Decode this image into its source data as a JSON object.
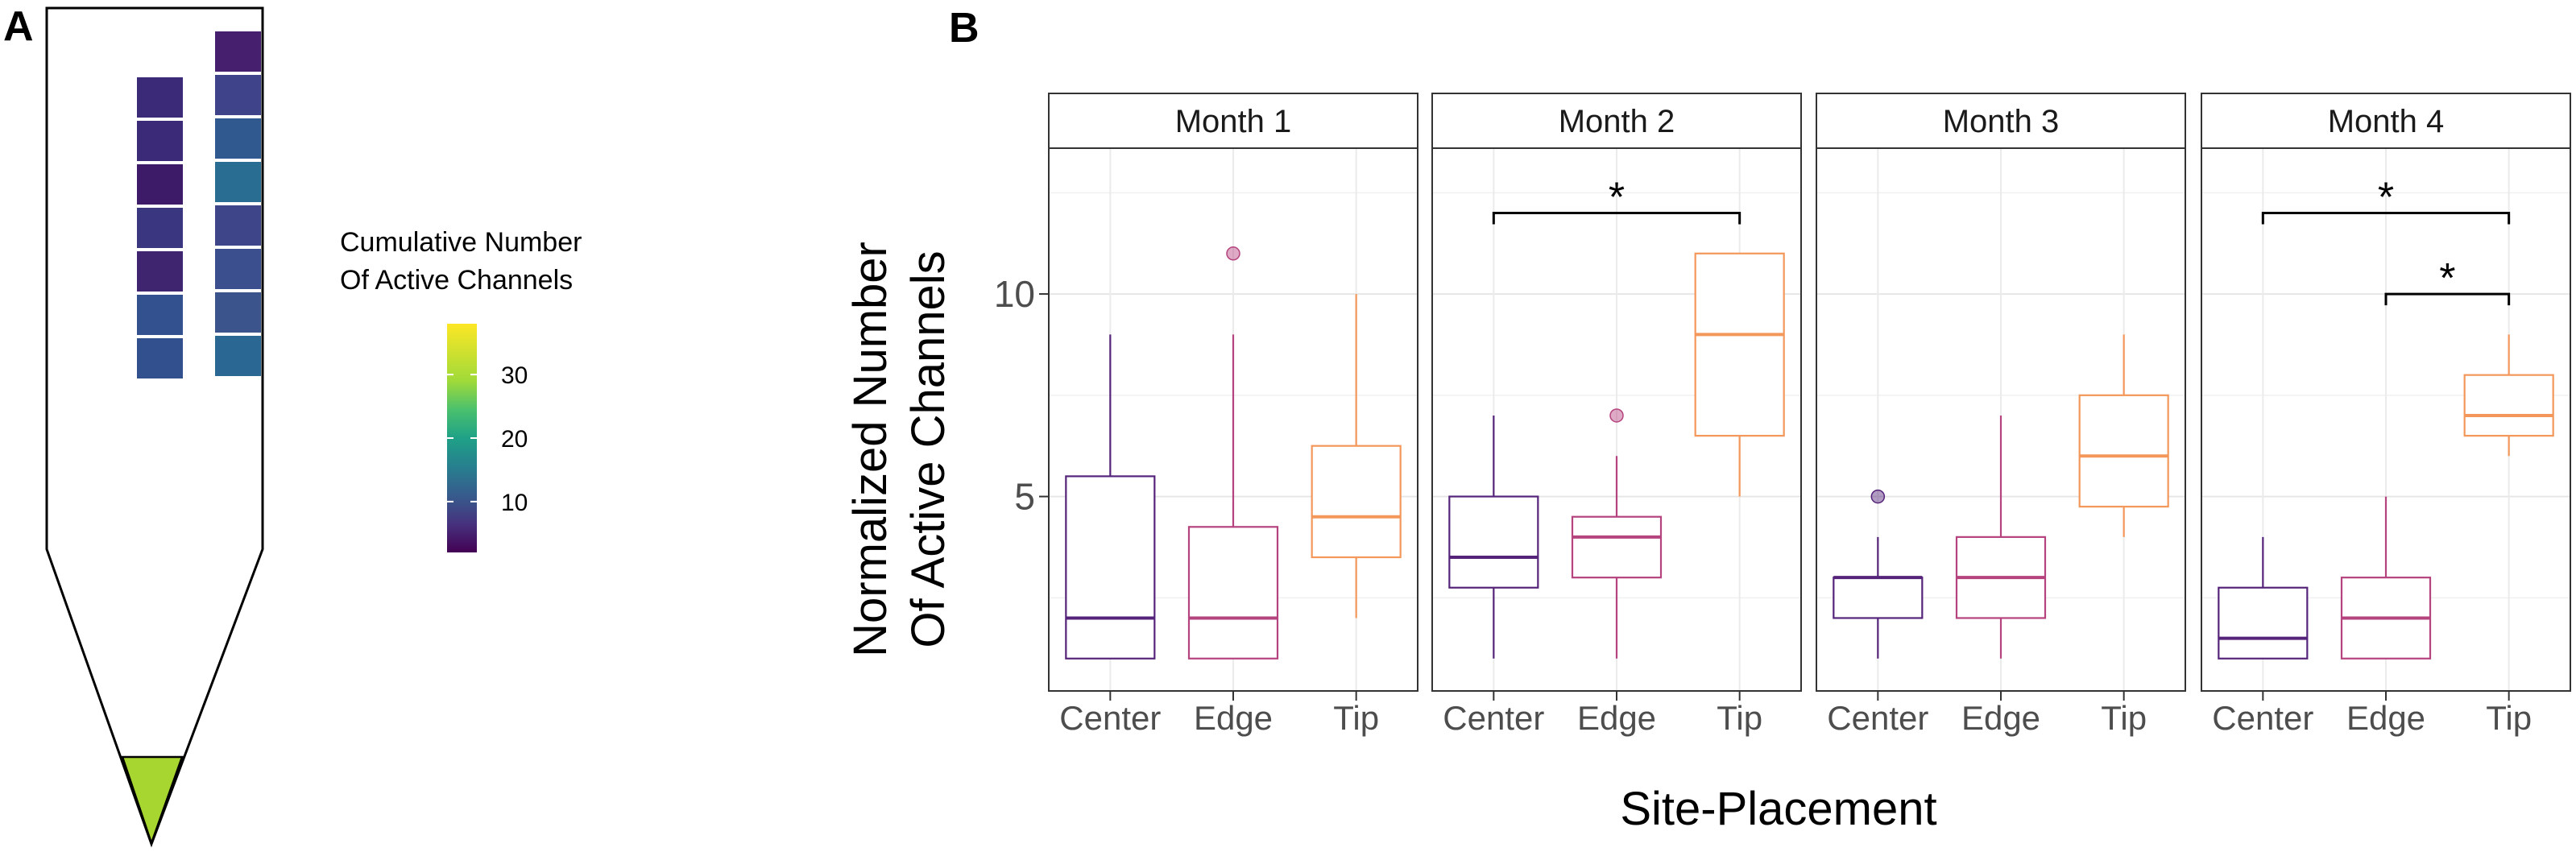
{
  "panel_a": {
    "label": "A",
    "legend": {
      "title_line1": "Cumulative Number",
      "title_line2": "Of Active Channels",
      "ticks": [
        "30",
        "20",
        "10"
      ],
      "tick_values": [
        30,
        20,
        10
      ],
      "range": [
        2,
        38
      ]
    },
    "tip_color": "#a8d630",
    "left_column_colors": [
      "#3b2a78",
      "#3a2a77",
      "#3e1b68",
      "#3b3680",
      "#3f2470",
      "#33508f",
      "#32508e"
    ],
    "right_column_colors": [
      "#461f6f",
      "#3e438a",
      "#30598f",
      "#2a6d93",
      "#3f4589",
      "#3b4e8d",
      "#3c548c",
      "#2b6793"
    ]
  },
  "panel_b": {
    "label": "B"
  },
  "chart_data": {
    "type": "box",
    "title": "",
    "xlabel": "Site-Placement",
    "ylabel_line1": "Normalized Number",
    "ylabel_line2": "Of Active Channels",
    "ylim": [
      0.2,
      13.6
    ],
    "yticks": [
      5,
      10
    ],
    "ytick_labels": [
      "5",
      "10"
    ],
    "categories": [
      "Center",
      "Edge",
      "Tip"
    ],
    "category_colors": {
      "Center": "#55247a",
      "Edge": "#b5437e",
      "Tip": "#f4975a"
    },
    "grid": true,
    "facets": [
      {
        "name": "Month 1",
        "boxes": [
          {
            "category": "Center",
            "whisker_low": 1,
            "q1": 1,
            "median": 2,
            "q3": 5.5,
            "whisker_high": 9,
            "outliers": []
          },
          {
            "category": "Edge",
            "whisker_low": 1,
            "q1": 1,
            "median": 2,
            "q3": 4.25,
            "whisker_high": 9,
            "outliers": [
              11
            ]
          },
          {
            "category": "Tip",
            "whisker_low": 2,
            "q1": 3.5,
            "median": 4.5,
            "q3": 6.25,
            "whisker_high": 10,
            "outliers": []
          }
        ],
        "significance": []
      },
      {
        "name": "Month 2",
        "boxes": [
          {
            "category": "Center",
            "whisker_low": 1,
            "q1": 2.75,
            "median": 3.5,
            "q3": 5,
            "whisker_high": 7,
            "outliers": []
          },
          {
            "category": "Edge",
            "whisker_low": 1,
            "q1": 3,
            "median": 4,
            "q3": 4.5,
            "whisker_high": 6,
            "outliers": [
              7
            ]
          },
          {
            "category": "Tip",
            "whisker_low": 5,
            "q1": 6.5,
            "median": 9,
            "q3": 11,
            "whisker_high": 11,
            "outliers": []
          }
        ],
        "significance": [
          {
            "from": "Center",
            "to": "Tip",
            "y": 12,
            "label": "*"
          }
        ]
      },
      {
        "name": "Month 3",
        "boxes": [
          {
            "category": "Center",
            "whisker_low": 1,
            "q1": 2,
            "median": 3,
            "q3": 3,
            "whisker_high": 4,
            "outliers": [
              5
            ]
          },
          {
            "category": "Edge",
            "whisker_low": 1,
            "q1": 2,
            "median": 3,
            "q3": 4,
            "whisker_high": 7,
            "outliers": []
          },
          {
            "category": "Tip",
            "whisker_low": 4,
            "q1": 4.75,
            "median": 6,
            "q3": 7.5,
            "whisker_high": 9,
            "outliers": []
          }
        ],
        "significance": []
      },
      {
        "name": "Month 4",
        "boxes": [
          {
            "category": "Center",
            "whisker_low": 1,
            "q1": 1,
            "median": 1.5,
            "q3": 2.75,
            "whisker_high": 4,
            "outliers": []
          },
          {
            "category": "Edge",
            "whisker_low": 1,
            "q1": 1,
            "median": 2,
            "q3": 3,
            "whisker_high": 5,
            "outliers": []
          },
          {
            "category": "Tip",
            "whisker_low": 6,
            "q1": 6.5,
            "median": 7,
            "q3": 8,
            "whisker_high": 9,
            "outliers": []
          }
        ],
        "significance": [
          {
            "from": "Center",
            "to": "Tip",
            "y": 12,
            "label": "*"
          },
          {
            "from": "Edge",
            "to": "Tip",
            "y": 10,
            "label": "*"
          }
        ]
      }
    ]
  }
}
